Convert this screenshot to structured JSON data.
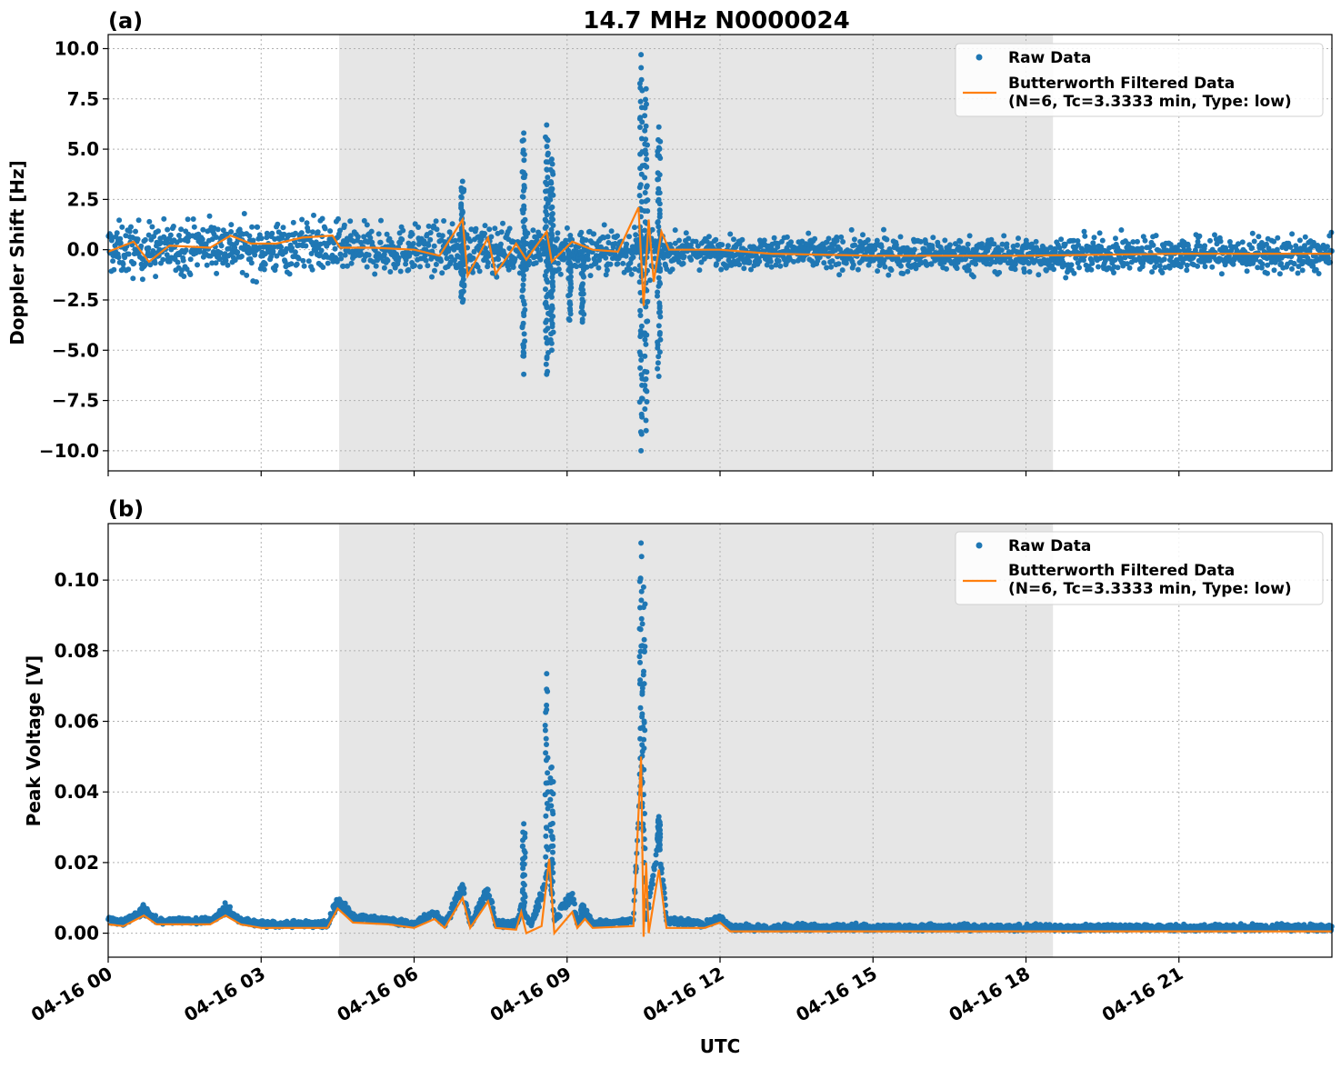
{
  "chart_data": [
    {
      "type": "scatter",
      "panel_label": "(a)",
      "title": "14.7 MHz N0000024",
      "ylabel": "Doppler Shift [Hz]",
      "xlabel": "",
      "x_range_hours": [
        0,
        24
      ],
      "ylim": [
        -11.0,
        10.7
      ],
      "yticks": [
        10.0,
        7.5,
        5.0,
        2.5,
        0.0,
        -2.5,
        -5.0,
        -7.5,
        -10.0
      ],
      "ytick_labels": [
        "10.0",
        "7.5",
        "5.0",
        "2.5",
        "0.0",
        "−2.5",
        "−5.0",
        "−7.5",
        "−10.0"
      ],
      "grid": true,
      "shaded_interval_hours": [
        4.53,
        18.53
      ],
      "legend_position": "top-right",
      "series": [
        {
          "name": "Raw Data",
          "kind": "points",
          "color": "#1f77b4",
          "baseline": [
            [
              0,
              0.0
            ],
            [
              1,
              0.0
            ],
            [
              2,
              0.3
            ],
            [
              3,
              0.0
            ],
            [
              4,
              0.3
            ],
            [
              4.6,
              0.0
            ],
            [
              6,
              0.0
            ],
            [
              8,
              0.0
            ],
            [
              10,
              -0.1
            ],
            [
              12,
              -0.1
            ],
            [
              15,
              -0.2
            ],
            [
              18,
              -0.3
            ],
            [
              21,
              -0.2
            ],
            [
              24,
              -0.3
            ]
          ],
          "envelope_halfwidth": [
            [
              0,
              2.1
            ],
            [
              4.5,
              2.1
            ],
            [
              4.6,
              1.9
            ],
            [
              10.5,
              1.9
            ],
            [
              11.2,
              1.2
            ],
            [
              12.5,
              1.2
            ],
            [
              15,
              1.4
            ],
            [
              24,
              1.4
            ]
          ],
          "spikes": [
            [
              6.95,
              3.4
            ],
            [
              6.95,
              -2.6
            ],
            [
              8.15,
              5.8
            ],
            [
              8.15,
              -6.2
            ],
            [
              8.6,
              6.2
            ],
            [
              8.6,
              -6.2
            ],
            [
              8.7,
              4.5
            ],
            [
              8.7,
              -5.0
            ],
            [
              9.05,
              -3.5
            ],
            [
              9.3,
              -3.6
            ],
            [
              10.45,
              9.7
            ],
            [
              10.45,
              -10.0
            ],
            [
              10.55,
              8.0
            ],
            [
              10.55,
              -9.0
            ],
            [
              10.8,
              6.1
            ],
            [
              10.8,
              -6.3
            ]
          ]
        },
        {
          "name": "Butterworth Filtered Data\n(N=6, Tc=3.3333 min, Type: low)",
          "kind": "line",
          "color": "#ff7f0e",
          "points": [
            [
              0,
              -0.1
            ],
            [
              0.5,
              0.4
            ],
            [
              0.8,
              -0.6
            ],
            [
              1.2,
              0.2
            ],
            [
              2,
              0.1
            ],
            [
              2.4,
              0.7
            ],
            [
              2.8,
              0.3
            ],
            [
              3.3,
              0.3
            ],
            [
              3.8,
              0.6
            ],
            [
              4.4,
              0.7
            ],
            [
              4.55,
              0.1
            ],
            [
              5.2,
              0.1
            ],
            [
              6,
              0.0
            ],
            [
              6.5,
              -0.3
            ],
            [
              6.95,
              1.5
            ],
            [
              7.05,
              -1.3
            ],
            [
              7.45,
              0.6
            ],
            [
              7.6,
              -1.2
            ],
            [
              8.0,
              0.3
            ],
            [
              8.2,
              -0.5
            ],
            [
              8.6,
              0.9
            ],
            [
              8.7,
              -0.6
            ],
            [
              9.1,
              0.4
            ],
            [
              9.5,
              0.0
            ],
            [
              10.0,
              -0.1
            ],
            [
              10.4,
              2.1
            ],
            [
              10.5,
              -2.8
            ],
            [
              10.6,
              1.5
            ],
            [
              10.7,
              -1.6
            ],
            [
              10.85,
              0.9
            ],
            [
              11.0,
              0.0
            ],
            [
              12,
              0.0
            ],
            [
              13,
              -0.2
            ],
            [
              15,
              -0.3
            ],
            [
              18,
              -0.3
            ],
            [
              21,
              -0.2
            ],
            [
              24,
              -0.2
            ]
          ]
        }
      ]
    },
    {
      "type": "scatter",
      "panel_label": "(b)",
      "title": "",
      "ylabel": "Peak Voltage [V]",
      "xlabel": "UTC",
      "x_range_hours": [
        0,
        24
      ],
      "ylim": [
        -0.0068,
        0.116
      ],
      "yticks": [
        0.0,
        0.02,
        0.04,
        0.06,
        0.08,
        0.1
      ],
      "ytick_labels": [
        "0.00",
        "0.02",
        "0.04",
        "0.06",
        "0.08",
        "0.10"
      ],
      "xticks_hours": [
        0,
        3,
        6,
        9,
        12,
        15,
        18,
        21
      ],
      "xtick_labels": [
        "04-16 00",
        "04-16 03",
        "04-16 06",
        "04-16 09",
        "04-16 12",
        "04-16 15",
        "04-16 18",
        "04-16 21"
      ],
      "grid": true,
      "shaded_interval_hours": [
        4.53,
        18.53
      ],
      "legend_position": "top-right",
      "series": [
        {
          "name": "Raw Data",
          "kind": "points",
          "color": "#1f77b4",
          "baseline": [
            [
              0,
              0.003
            ],
            [
              0.3,
              0.0025
            ],
            [
              0.7,
              0.006
            ],
            [
              0.95,
              0.003
            ],
            [
              2,
              0.003
            ],
            [
              2.3,
              0.006
            ],
            [
              2.6,
              0.003
            ],
            [
              3,
              0.002
            ],
            [
              4.3,
              0.002
            ],
            [
              4.5,
              0.008
            ],
            [
              4.8,
              0.004
            ],
            [
              5.5,
              0.003
            ],
            [
              6,
              0.002
            ],
            [
              6.4,
              0.005
            ],
            [
              6.6,
              0.002
            ],
            [
              6.95,
              0.012
            ],
            [
              7.1,
              0.002
            ],
            [
              7.45,
              0.011
            ],
            [
              7.6,
              0.002
            ],
            [
              8.0,
              0.002
            ],
            [
              8.1,
              0.006
            ],
            [
              8.3,
              0.002
            ],
            [
              8.55,
              0.012
            ],
            [
              8.65,
              0.019
            ],
            [
              8.75,
              0.003
            ],
            [
              9.1,
              0.01
            ],
            [
              9.2,
              0.002
            ],
            [
              9.35,
              0.006
            ],
            [
              9.5,
              0.002
            ],
            [
              10.3,
              0.003
            ],
            [
              10.45,
              0.045
            ],
            [
              10.55,
              0.003
            ],
            [
              10.8,
              0.025
            ],
            [
              10.95,
              0.003
            ],
            [
              11.7,
              0.002
            ],
            [
              12.0,
              0.004
            ],
            [
              12.2,
              0.001
            ],
            [
              14,
              0.001
            ],
            [
              24,
              0.001
            ]
          ],
          "spikes": [
            [
              8.15,
              0.031
            ],
            [
              8.6,
              0.0735
            ],
            [
              8.7,
              0.047
            ],
            [
              9.3,
              0.008
            ],
            [
              10.45,
              0.1105
            ],
            [
              10.5,
              0.098
            ],
            [
              10.8,
              0.033
            ]
          ]
        },
        {
          "name": "Butterworth Filtered Data\n(N=6, Tc=3.3333 min, Type: low)",
          "kind": "line",
          "color": "#ff7f0e",
          "points": [
            [
              0,
              0.0025
            ],
            [
              0.3,
              0.002
            ],
            [
              0.7,
              0.005
            ],
            [
              0.95,
              0.0025
            ],
            [
              2,
              0.0025
            ],
            [
              2.3,
              0.005
            ],
            [
              2.6,
              0.0025
            ],
            [
              3,
              0.0015
            ],
            [
              4.3,
              0.0015
            ],
            [
              4.5,
              0.007
            ],
            [
              4.8,
              0.003
            ],
            [
              5.5,
              0.0025
            ],
            [
              6,
              0.0015
            ],
            [
              6.4,
              0.004
            ],
            [
              6.6,
              0.0015
            ],
            [
              6.95,
              0.01
            ],
            [
              7.1,
              0.0015
            ],
            [
              7.45,
              0.009
            ],
            [
              7.6,
              0.0015
            ],
            [
              8.0,
              0.001
            ],
            [
              8.1,
              0.006
            ],
            [
              8.2,
              0.0
            ],
            [
              8.5,
              0.002
            ],
            [
              8.65,
              0.021
            ],
            [
              8.75,
              0.0
            ],
            [
              9.1,
              0.006
            ],
            [
              9.2,
              0.0015
            ],
            [
              9.35,
              0.004
            ],
            [
              9.5,
              0.0015
            ],
            [
              10.3,
              0.002
            ],
            [
              10.45,
              0.05
            ],
            [
              10.5,
              -0.001
            ],
            [
              10.55,
              0.02
            ],
            [
              10.6,
              0.0
            ],
            [
              10.8,
              0.018
            ],
            [
              10.95,
              0.0015
            ],
            [
              11.7,
              0.0015
            ],
            [
              12.0,
              0.003
            ],
            [
              12.2,
              0.0005
            ],
            [
              14,
              0.0005
            ],
            [
              24,
              0.0005
            ]
          ]
        }
      ]
    }
  ]
}
